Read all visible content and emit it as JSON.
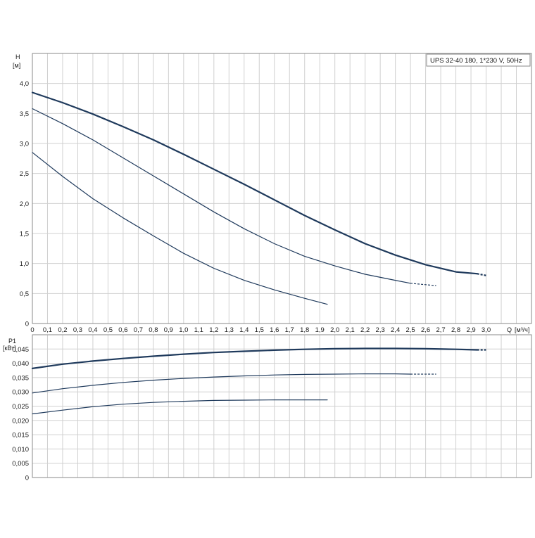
{
  "chart_data": [
    {
      "type": "line",
      "ylabel": "H",
      "yunit": "[м]",
      "xlabel": "Q",
      "xunit": "[м³/ч]",
      "xlim": [
        0,
        3.3
      ],
      "ylim": [
        0,
        4.5
      ],
      "xticks": [
        "0",
        "0,1",
        "0,2",
        "0,3",
        "0,4",
        "0,5",
        "0,6",
        "0,7",
        "0,8",
        "0,9",
        "1,0",
        "1,1",
        "1,2",
        "1,3",
        "1,4",
        "1,5",
        "1,6",
        "1,7",
        "1,8",
        "1,9",
        "2,0",
        "2,1",
        "2,2",
        "2,3",
        "2,4",
        "2,5",
        "2,6",
        "2,7",
        "2,8",
        "2,9",
        "3,0"
      ],
      "yticks": [
        "0",
        "0,5",
        "1,0",
        "1,5",
        "2,0",
        "2,5",
        "3,0",
        "3,5",
        "4,0"
      ],
      "grid": true,
      "legend": "UPS 32-40 180, 1*230 V, 50Hz",
      "legend_position": "top-right",
      "series": [
        {
          "curve": "speed-3",
          "x": [
            0,
            0.2,
            0.4,
            0.6,
            0.8,
            1.0,
            1.2,
            1.4,
            1.6,
            1.8,
            2.0,
            2.2,
            2.4,
            2.6,
            2.8,
            2.94
          ],
          "y": [
            3.85,
            3.68,
            3.49,
            3.28,
            3.06,
            2.82,
            2.57,
            2.32,
            2.06,
            1.8,
            1.56,
            1.33,
            1.14,
            0.98,
            0.86,
            0.83
          ],
          "dashed_x": [
            2.94,
            3.0
          ],
          "dashed_y": [
            0.83,
            0.8
          ]
        },
        {
          "curve": "speed-2",
          "x": [
            0,
            0.2,
            0.4,
            0.6,
            0.8,
            1.0,
            1.2,
            1.4,
            1.6,
            1.8,
            2.0,
            2.2,
            2.4,
            2.5
          ],
          "y": [
            3.58,
            3.33,
            3.06,
            2.76,
            2.46,
            2.16,
            1.86,
            1.58,
            1.33,
            1.12,
            0.96,
            0.82,
            0.72,
            0.67
          ],
          "dashed_x": [
            2.5,
            2.67
          ],
          "dashed_y": [
            0.67,
            0.63
          ]
        },
        {
          "curve": "speed-1",
          "x": [
            0,
            0.2,
            0.4,
            0.6,
            0.8,
            1.0,
            1.2,
            1.4,
            1.6,
            1.8,
            1.95
          ],
          "y": [
            2.85,
            2.45,
            2.08,
            1.76,
            1.46,
            1.17,
            0.92,
            0.72,
            0.56,
            0.42,
            0.32
          ]
        }
      ]
    },
    {
      "type": "line",
      "ylabel": "P1",
      "yunit": "[кВт]",
      "xlim": [
        0,
        3.3
      ],
      "ylim": [
        0,
        0.05
      ],
      "yticks": [
        "0",
        "0,005",
        "0,010",
        "0,015",
        "0,020",
        "0,025",
        "0,030",
        "0,035",
        "0,040",
        "0,045"
      ],
      "grid": true,
      "series": [
        {
          "curve": "speed-3",
          "x": [
            0,
            0.2,
            0.4,
            0.6,
            0.8,
            1.0,
            1.2,
            1.4,
            1.6,
            1.8,
            2.0,
            2.2,
            2.4,
            2.6,
            2.8,
            2.94
          ],
          "y": [
            0.0382,
            0.0397,
            0.0408,
            0.0417,
            0.0425,
            0.0432,
            0.0438,
            0.0442,
            0.0446,
            0.0449,
            0.0451,
            0.0452,
            0.0452,
            0.0451,
            0.0449,
            0.0447
          ],
          "dashed_x": [
            2.94,
            3.0
          ],
          "dashed_y": [
            0.0447,
            0.0447
          ]
        },
        {
          "curve": "speed-2",
          "x": [
            0,
            0.2,
            0.4,
            0.6,
            0.8,
            1.0,
            1.2,
            1.4,
            1.6,
            1.8,
            2.0,
            2.2,
            2.4,
            2.5
          ],
          "y": [
            0.0296,
            0.0311,
            0.0323,
            0.0333,
            0.0341,
            0.0347,
            0.0352,
            0.0356,
            0.0359,
            0.0361,
            0.0362,
            0.0363,
            0.0363,
            0.0362
          ],
          "dashed_x": [
            2.5,
            2.67
          ],
          "dashed_y": [
            0.0362,
            0.0362
          ]
        },
        {
          "curve": "speed-1",
          "x": [
            0,
            0.2,
            0.4,
            0.6,
            0.8,
            1.0,
            1.2,
            1.4,
            1.6,
            1.8,
            1.95
          ],
          "y": [
            0.0223,
            0.0236,
            0.0248,
            0.0257,
            0.0263,
            0.0267,
            0.027,
            0.0271,
            0.0272,
            0.0272,
            0.0272
          ]
        }
      ]
    }
  ],
  "colors": {
    "curve": "#1f3a5c",
    "grid": "#d0d0d0",
    "frame": "#8a8a8a"
  }
}
